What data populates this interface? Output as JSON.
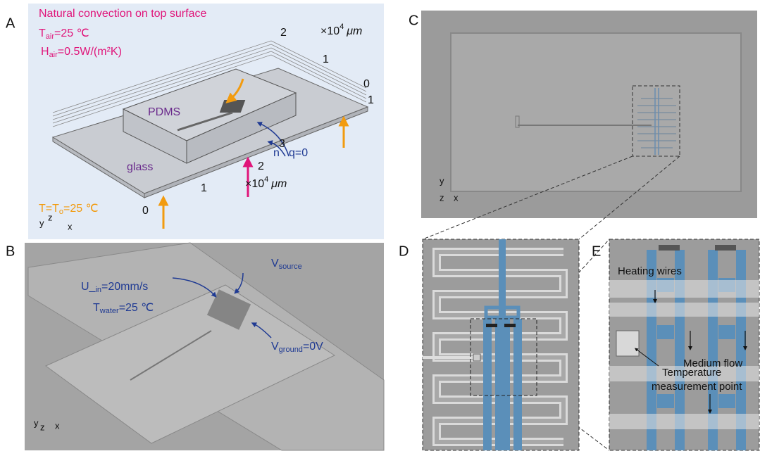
{
  "panels": {
    "A": {
      "label": "A",
      "title": "Natural convection on top surface",
      "t_air": {
        "base": "T",
        "sub": "air",
        "rest": "=25 ℃"
      },
      "h_air": {
        "base": "H",
        "sub": "air",
        "rest": "=0.5W/(m²K)"
      },
      "pdms": "PDMS",
      "glass": "glass",
      "normal": "n",
      "flux": "q=0",
      "t_init": {
        "base": "T=T",
        "sub": "o",
        "rest": "=25 ℃"
      },
      "scale": {
        "base": "×10",
        "sup": "4",
        "unit": "μm"
      },
      "y_ticks": [
        "2",
        "1",
        "0"
      ],
      "z_tick": "1",
      "x_ticks": [
        "0",
        "1",
        "2",
        "3"
      ],
      "triad": [
        "y",
        "z",
        "x"
      ]
    },
    "B": {
      "label": "B",
      "u_in": {
        "base": "U_",
        "sub": "in",
        "rest": "=20mm/s"
      },
      "t_water": {
        "base": "T",
        "sub": "water",
        "rest": "=25 ℃"
      },
      "v_source": {
        "base": "V",
        "sub": "source"
      },
      "v_ground": {
        "base": "V",
        "sub": "ground",
        "rest": "=0V"
      },
      "triad": [
        "y",
        "z",
        "x"
      ]
    },
    "C": {
      "label": "C",
      "triad": [
        "y",
        "z",
        "x"
      ]
    },
    "D": {
      "label": "D"
    },
    "E": {
      "label": "E",
      "heating": "Heating wires",
      "flow": "Medium flow",
      "temp_point": [
        "Temperature",
        "measurement point"
      ]
    }
  }
}
